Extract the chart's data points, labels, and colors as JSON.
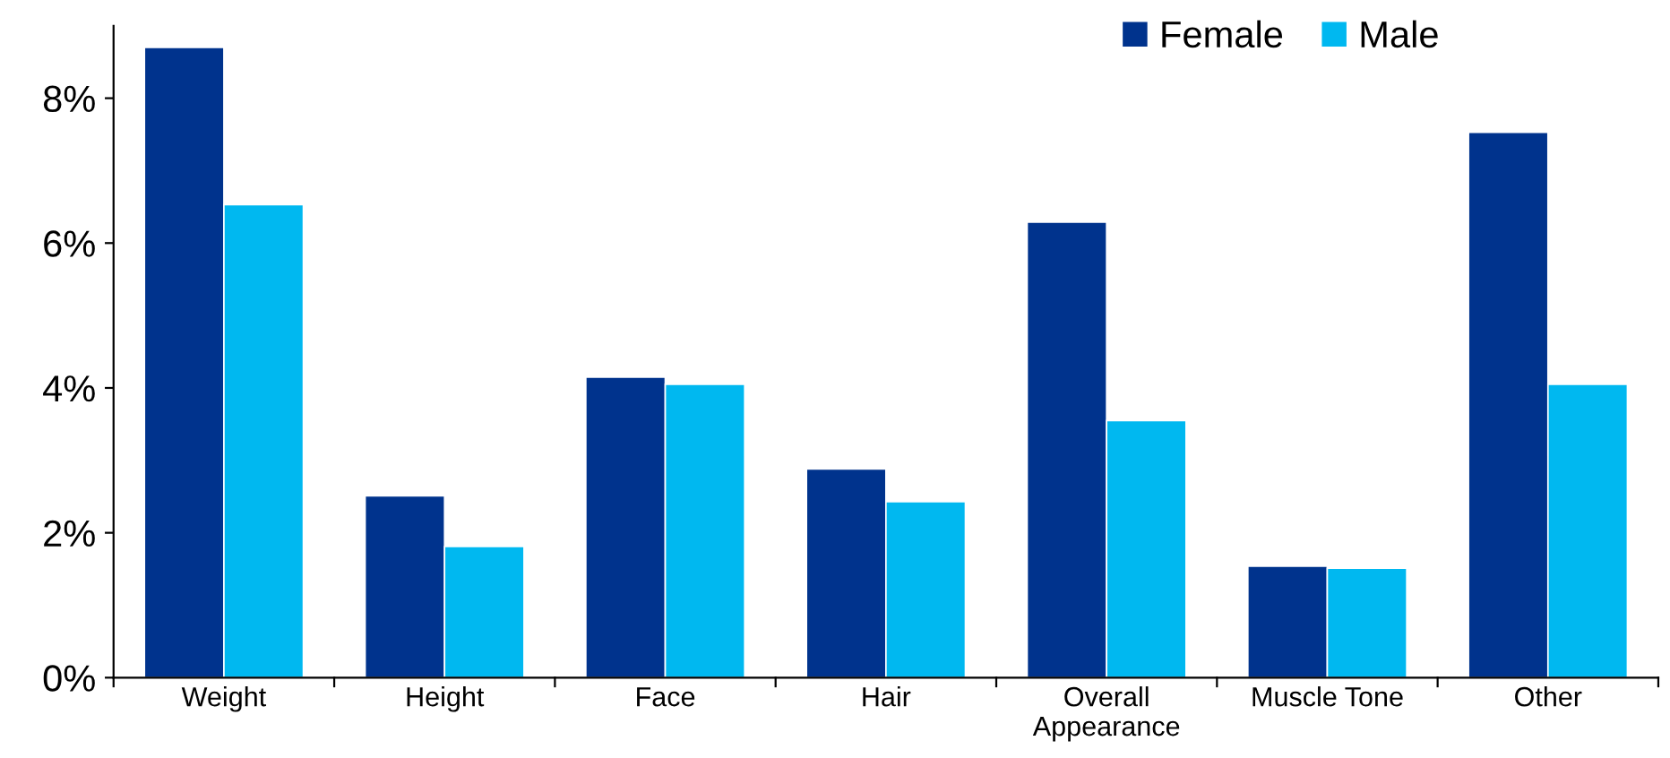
{
  "chart_data": {
    "type": "bar",
    "categories": [
      "Weight",
      "Height",
      "Face",
      "Hair",
      "Overall\nAppearance",
      "Muscle Tone",
      "Other"
    ],
    "series": [
      {
        "name": "Female",
        "color": "#00338d",
        "values": [
          8.7,
          2.51,
          4.15,
          2.88,
          6.29,
          1.54,
          7.53
        ]
      },
      {
        "name": "Male",
        "color": "#00b8f0",
        "values": [
          6.53,
          1.81,
          4.05,
          2.43,
          3.55,
          1.51,
          4.05
        ]
      }
    ],
    "ylim": [
      0,
      9
    ],
    "yticks": [
      {
        "value": 0,
        "label": "0%"
      },
      {
        "value": 2,
        "label": "2%"
      },
      {
        "value": 4,
        "label": "4%"
      },
      {
        "value": 6,
        "label": "6%"
      },
      {
        "value": 8,
        "label": "8%"
      }
    ],
    "grid": false,
    "legend": "top right"
  }
}
